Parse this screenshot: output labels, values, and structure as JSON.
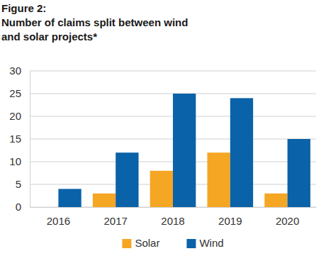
{
  "chart_data": {
    "type": "bar",
    "title": "Figure 2:",
    "subtitle": "Number of claims split between wind and solar projects*",
    "categories": [
      "2016",
      "2017",
      "2018",
      "2019",
      "2020"
    ],
    "series": [
      {
        "name": "Solar",
        "color": "#f5a623",
        "values": [
          0,
          3,
          8,
          12,
          3
        ]
      },
      {
        "name": "Wind",
        "color": "#0a62a8",
        "values": [
          4,
          12,
          25,
          24,
          15
        ]
      }
    ],
    "ylim": [
      0,
      30
    ],
    "yticks": [
      0,
      5,
      10,
      15,
      20,
      25,
      30
    ],
    "grid": true,
    "legend": "bottom"
  }
}
